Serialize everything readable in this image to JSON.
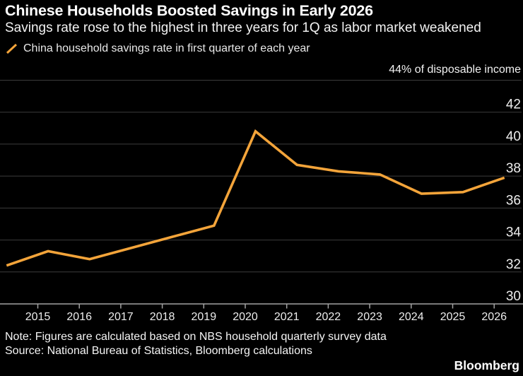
{
  "header": {
    "title": "Chinese Households Boosted Savings in Early 2026",
    "subtitle": "Savings rate rose to the highest in three years for 1Q as labor market weakened"
  },
  "legend": {
    "label": "China household savings rate in first quarter of each year"
  },
  "chart_data": {
    "type": "line",
    "title": "Chinese Households Boosted Savings in Early 2026",
    "unit_label": "44% of disposable income",
    "xlabel": "",
    "ylabel": "% of disposable income",
    "x": [
      2014,
      2015,
      2016,
      2017,
      2018,
      2019,
      2020,
      2021,
      2022,
      2023,
      2024,
      2025,
      2026
    ],
    "series": [
      {
        "name": "China household savings rate in first quarter of each year",
        "color": "#F3A43A",
        "values": [
          32.4,
          33.3,
          32.8,
          33.5,
          34.2,
          34.9,
          40.8,
          38.7,
          38.3,
          38.1,
          36.9,
          37.0,
          37.9
        ]
      }
    ],
    "ylim": [
      30,
      44
    ],
    "y_gridline_values": [
      44,
      42,
      40,
      38,
      36,
      34,
      32
    ],
    "y_axis_label_values": [
      42,
      40,
      38,
      36,
      34,
      32,
      30
    ],
    "x_tick_years": [
      2015,
      2016,
      2017,
      2018,
      2019,
      2020,
      2021,
      2022,
      2023,
      2024,
      2025,
      2026
    ],
    "grid": true,
    "legend_position": "top-left"
  },
  "colors": {
    "background": "#000000",
    "line": "#F3A43A",
    "gridline": "#3c3c3c",
    "axis": "#a3a3a3",
    "tick_label": "#ededed",
    "text": "#ffffff"
  },
  "footer": {
    "note": "Note: Figures are calculated based on NBS household quarterly survey data",
    "source": "Source: National Bureau of Statistics, Bloomberg calculations",
    "logo": "Bloomberg"
  }
}
